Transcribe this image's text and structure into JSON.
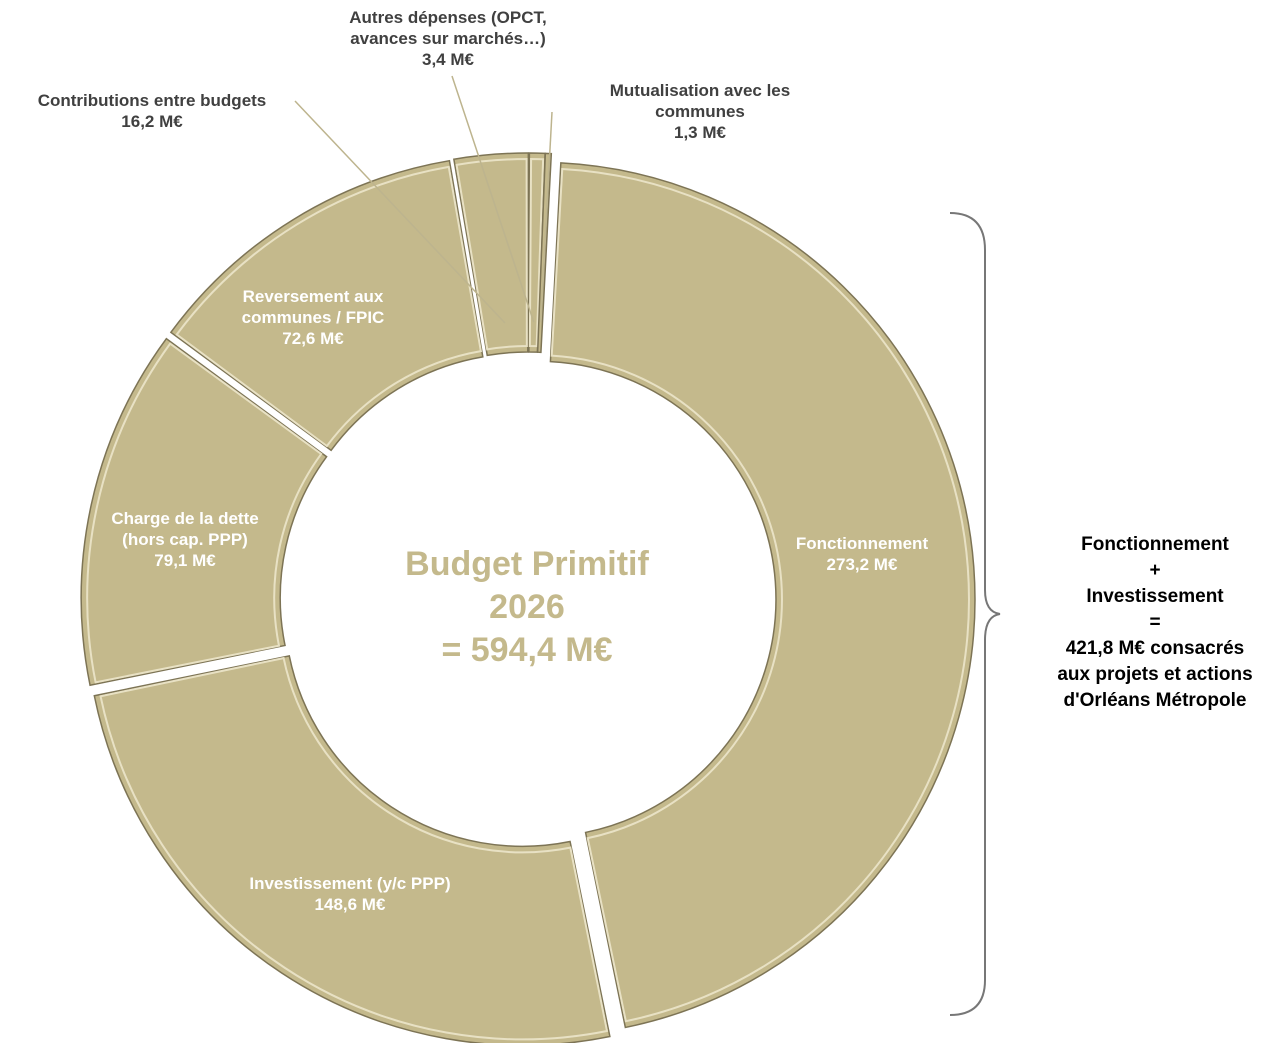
{
  "chart_data": {
    "type": "donut",
    "categories": [
      "Fonctionnement",
      "Investissement (y/c PPP)",
      "Charge de la dette (hors cap. PPP)",
      "Reversement aux communes / FPIC",
      "Contributions entre budgets",
      "Autres dépenses (OPCT, avances sur marchés…)",
      "Mutualisation avec les communes"
    ],
    "values": [
      273.2,
      148.6,
      79.1,
      72.6,
      16.2,
      3.4,
      1.3
    ],
    "value_labels": [
      "273,2 M€",
      "148,6 M€",
      "79,1 M€",
      "72,6 M€",
      "16,2 M€",
      "3,4 M€",
      "1,3 M€"
    ],
    "color": "#c4b98c",
    "center_label": [
      "Budget Primitif",
      "2026",
      "= 594,4 M€"
    ],
    "annotation": [
      "Fonctionnement",
      "+",
      "Investissement",
      "=",
      "421,8 M€ consacrés",
      "aux projets et actions",
      "d'Orléans Métropole"
    ]
  }
}
